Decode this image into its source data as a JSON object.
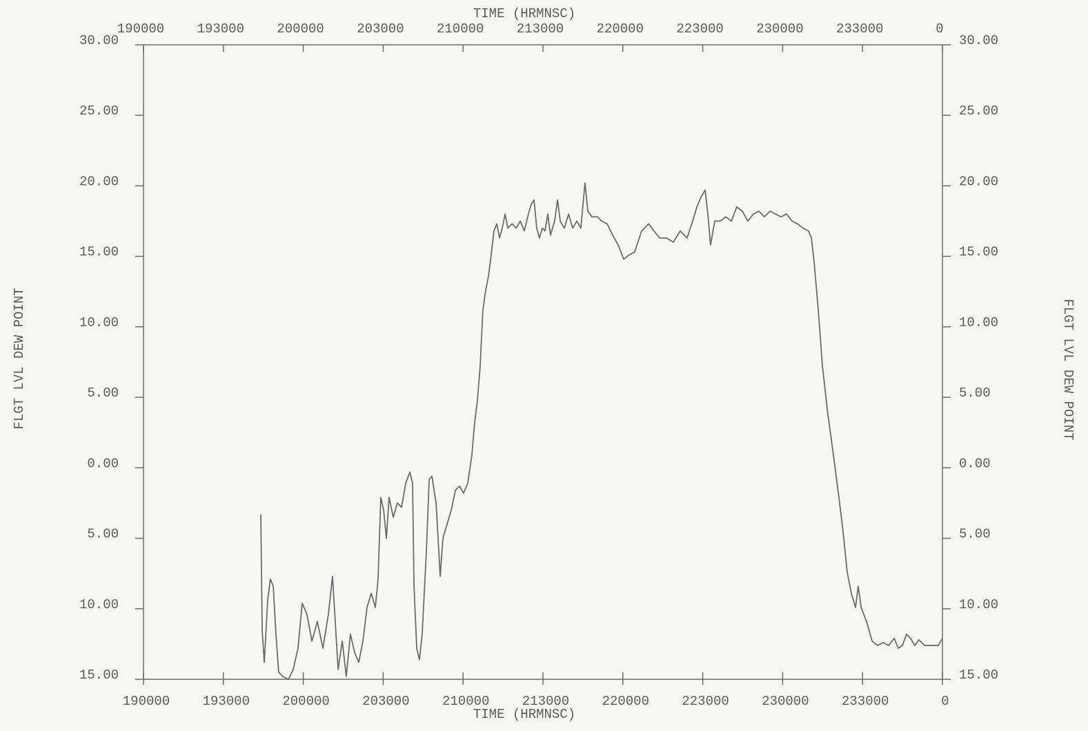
{
  "chart_data": {
    "type": "line",
    "x_label": "TIME (HRMNSC)",
    "y_label": "FLGT LVL DEW POINT",
    "color": "#6b6b6b",
    "xlim": [
      19,
      24
    ],
    "ylim": [
      -15,
      30
    ],
    "xticks": [
      {
        "value": 19,
        "label": "190000"
      },
      {
        "value": 19.5,
        "label": "193000"
      },
      {
        "value": 20,
        "label": "200000"
      },
      {
        "value": 20.5,
        "label": "203000"
      },
      {
        "value": 21,
        "label": "210000"
      },
      {
        "value": 21.5,
        "label": "213000"
      },
      {
        "value": 22,
        "label": "220000"
      },
      {
        "value": 22.5,
        "label": "223000"
      },
      {
        "value": 23,
        "label": "230000"
      },
      {
        "value": 23.5,
        "label": "233000"
      },
      {
        "value": 24,
        "label": "0"
      }
    ],
    "yticks": [
      {
        "value": 30,
        "label": "30.00"
      },
      {
        "value": 25,
        "label": "25.00"
      },
      {
        "value": 20,
        "label": "20.00"
      },
      {
        "value": 15,
        "label": "15.00"
      },
      {
        "value": 10,
        "label": "10.00"
      },
      {
        "value": 5,
        "label": "5.00"
      },
      {
        "value": 0,
        "label": "0.00"
      },
      {
        "value": -5,
        "label": "5.00"
      },
      {
        "value": -10,
        "label": "10.00"
      },
      {
        "value": -15,
        "label": "15.00"
      }
    ],
    "x": [
      19.734,
      19.743,
      19.756,
      19.777,
      19.794,
      19.812,
      19.829,
      19.846,
      19.872,
      19.907,
      19.937,
      19.967,
      19.993,
      20.023,
      20.054,
      20.088,
      20.123,
      20.157,
      20.183,
      20.2,
      20.218,
      20.244,
      20.269,
      20.295,
      20.321,
      20.347,
      20.373,
      20.399,
      20.425,
      20.451,
      20.468,
      20.485,
      20.503,
      20.52,
      20.537,
      20.563,
      20.589,
      20.615,
      20.641,
      20.667,
      20.684,
      20.693,
      20.71,
      20.727,
      20.744,
      20.77,
      20.788,
      20.805,
      20.831,
      20.857,
      20.874,
      20.9,
      20.926,
      20.952,
      20.978,
      21.003,
      21.029,
      21.055,
      21.073,
      21.09,
      21.107,
      21.124,
      21.142,
      21.159,
      21.176,
      21.193,
      21.211,
      21.228,
      21.245,
      21.263,
      21.28,
      21.306,
      21.332,
      21.358,
      21.383,
      21.409,
      21.427,
      21.444,
      21.461,
      21.478,
      21.496,
      21.513,
      21.53,
      21.547,
      21.573,
      21.591,
      21.608,
      21.634,
      21.66,
      21.686,
      21.712,
      21.737,
      21.763,
      21.781,
      21.807,
      21.841,
      21.867,
      21.902,
      21.936,
      21.971,
      22.005,
      22.04,
      22.074,
      22.117,
      22.161,
      22.195,
      22.23,
      22.273,
      22.316,
      22.359,
      22.402,
      22.437,
      22.463,
      22.489,
      22.515,
      22.532,
      22.549,
      22.575,
      22.61,
      22.644,
      22.679,
      22.713,
      22.748,
      22.782,
      22.817,
      22.851,
      22.886,
      22.921,
      22.955,
      22.99,
      23.024,
      23.059,
      23.093,
      23.128,
      23.162,
      23.18,
      23.197,
      23.223,
      23.249,
      23.283,
      23.318,
      23.352,
      23.378,
      23.404,
      23.43,
      23.456,
      23.473,
      23.491,
      23.525,
      23.56,
      23.594,
      23.629,
      23.663,
      23.698,
      23.724,
      23.75,
      23.775,
      23.801,
      23.827,
      23.853,
      23.888,
      23.931,
      23.974,
      24.0
    ],
    "values": [
      -3.3,
      -11.6,
      -13.8,
      -9.4,
      -7.9,
      -8.4,
      -11.8,
      -14.5,
      -14.8,
      -15.0,
      -14.3,
      -12.8,
      -9.6,
      -10.4,
      -12.3,
      -10.9,
      -12.8,
      -10.4,
      -7.7,
      -10.9,
      -14.3,
      -12.3,
      -14.8,
      -11.8,
      -13.1,
      -13.8,
      -12.3,
      -9.9,
      -8.9,
      -9.9,
      -7.9,
      -2.1,
      -3.0,
      -5.0,
      -2.1,
      -3.5,
      -2.5,
      -2.8,
      -1.1,
      -0.3,
      -1.1,
      -8.4,
      -12.8,
      -13.6,
      -11.8,
      -6.0,
      -0.8,
      -0.6,
      -2.5,
      -7.7,
      -5.0,
      -4.0,
      -3.0,
      -1.6,
      -1.3,
      -1.8,
      -1.1,
      0.9,
      3.3,
      4.8,
      7.2,
      11.2,
      12.6,
      13.6,
      15.1,
      16.8,
      17.3,
      16.3,
      17.0,
      18.0,
      17.0,
      17.3,
      17.0,
      17.5,
      16.8,
      18.0,
      18.7,
      19.0,
      17.0,
      16.3,
      17.0,
      16.8,
      18.0,
      16.5,
      17.5,
      19.0,
      17.5,
      17.0,
      18.0,
      17.0,
      17.5,
      17.0,
      20.2,
      18.2,
      17.8,
      17.8,
      17.5,
      17.3,
      16.5,
      15.8,
      14.8,
      15.1,
      15.3,
      16.8,
      17.3,
      16.8,
      16.3,
      16.3,
      16.0,
      16.8,
      16.3,
      17.5,
      18.5,
      19.2,
      19.7,
      18.0,
      15.8,
      17.5,
      17.5,
      17.8,
      17.5,
      18.5,
      18.2,
      17.5,
      18.0,
      18.2,
      17.8,
      18.2,
      18.0,
      17.8,
      18.0,
      17.5,
      17.3,
      17.0,
      16.8,
      16.3,
      14.6,
      11.2,
      7.2,
      3.8,
      0.9,
      -2.1,
      -4.5,
      -7.4,
      -8.9,
      -9.9,
      -8.4,
      -9.9,
      -10.9,
      -12.3,
      -12.6,
      -12.4,
      -12.6,
      -12.1,
      -12.8,
      -12.6,
      -11.8,
      -12.1,
      -12.6,
      -12.2,
      -12.6,
      -12.6,
      -12.6,
      -12.1
    ]
  }
}
